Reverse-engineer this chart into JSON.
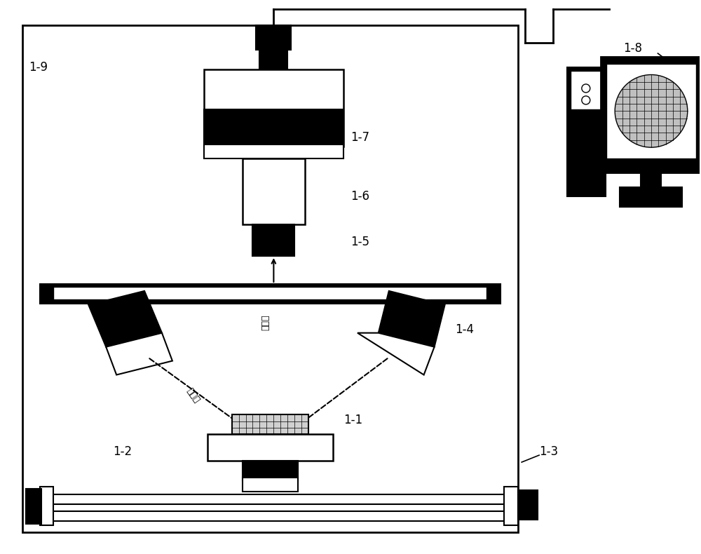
{
  "bg_color": "#ffffff",
  "figure_size": [
    10.0,
    7.9
  ],
  "dpi": 100,
  "chinese_incident": "入射光",
  "chinese_reflected": "反射光"
}
